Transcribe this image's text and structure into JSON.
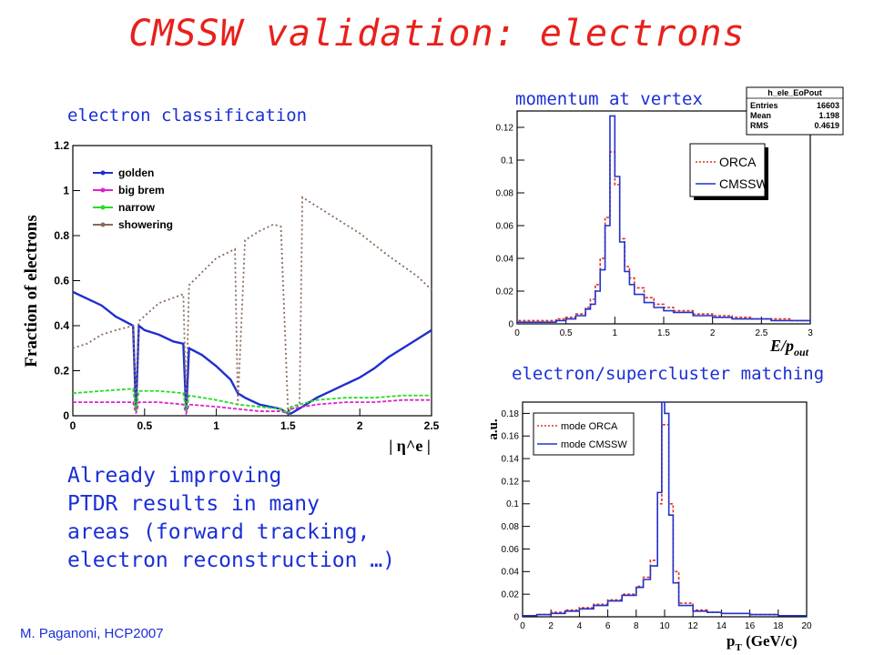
{
  "title": "CMSSW validation: electrons",
  "captions": {
    "classification": "electron classification",
    "momentum": "momentum at vertex",
    "matching": "electron/supercluster matching"
  },
  "bottom_text": [
    "Already improving",
    "PTDR results in many",
    "areas (forward tracking,",
    "electron reconstruction …)"
  ],
  "footer": "M. Paganoni, HCP2007",
  "colors": {
    "title": "#e8201c",
    "text": "#1a2fd6",
    "golden": "#1f2fd0",
    "bigbrem": "#e020d0",
    "narrow": "#22dd22",
    "showering": "#8a6a5a",
    "orca": "#e03020",
    "cmssw": "#2233cc"
  },
  "chart_data": [
    {
      "type": "line",
      "ylabel": "Fraction of electrons",
      "xlabel": "| η^e |",
      "xlim": [
        0,
        2.5
      ],
      "ylim": [
        0,
        1.2
      ],
      "xticks": [
        "0",
        "0.5",
        "1",
        "1.5",
        "2",
        "2.5"
      ],
      "yticks": [
        "0",
        "0.2",
        "0.4",
        "0.6",
        "0.8",
        "1",
        "1.2"
      ],
      "legend": [
        "golden",
        "big brem",
        "narrow",
        "showering"
      ],
      "series": [
        {
          "name": "golden",
          "x": [
            0,
            0.1,
            0.2,
            0.3,
            0.42,
            0.44,
            0.46,
            0.5,
            0.6,
            0.7,
            0.77,
            0.79,
            0.81,
            0.9,
            1.0,
            1.1,
            1.15,
            1.2,
            1.3,
            1.45,
            1.5,
            1.52,
            1.6,
            1.7,
            1.8,
            1.9,
            2.0,
            2.1,
            2.2,
            2.3,
            2.4,
            2.5
          ],
          "y": [
            0.55,
            0.52,
            0.49,
            0.44,
            0.4,
            0.02,
            0.4,
            0.38,
            0.36,
            0.33,
            0.32,
            0.02,
            0.3,
            0.27,
            0.22,
            0.16,
            0.1,
            0.08,
            0.05,
            0.03,
            0.01,
            0.01,
            0.04,
            0.08,
            0.11,
            0.14,
            0.17,
            0.21,
            0.26,
            0.3,
            0.34,
            0.38
          ]
        },
        {
          "name": "big brem",
          "x": [
            0,
            0.2,
            0.42,
            0.44,
            0.46,
            0.6,
            0.77,
            0.79,
            0.81,
            1.0,
            1.15,
            1.3,
            1.45,
            1.5,
            1.52,
            1.7,
            1.9,
            2.1,
            2.3,
            2.5
          ],
          "y": [
            0.06,
            0.06,
            0.06,
            0.01,
            0.06,
            0.06,
            0.05,
            0.01,
            0.05,
            0.04,
            0.03,
            0.02,
            0.02,
            0.01,
            0.03,
            0.05,
            0.06,
            0.06,
            0.07,
            0.07
          ]
        },
        {
          "name": "narrow",
          "x": [
            0,
            0.2,
            0.42,
            0.44,
            0.46,
            0.6,
            0.77,
            0.79,
            0.81,
            1.0,
            1.15,
            1.3,
            1.45,
            1.5,
            1.52,
            1.7,
            1.9,
            2.1,
            2.3,
            2.5
          ],
          "y": [
            0.1,
            0.11,
            0.12,
            0.02,
            0.11,
            0.11,
            0.1,
            0.02,
            0.09,
            0.07,
            0.05,
            0.04,
            0.03,
            0.01,
            0.04,
            0.07,
            0.08,
            0.08,
            0.09,
            0.09
          ]
        },
        {
          "name": "showering",
          "x": [
            0,
            0.1,
            0.2,
            0.3,
            0.42,
            0.44,
            0.46,
            0.6,
            0.77,
            0.79,
            0.81,
            1.0,
            1.13,
            1.15,
            1.2,
            1.3,
            1.4,
            1.45,
            1.5,
            1.58,
            1.6,
            1.8,
            2.0,
            2.2,
            2.4,
            2.5
          ],
          "y": [
            0.3,
            0.32,
            0.36,
            0.38,
            0.4,
            0.05,
            0.42,
            0.5,
            0.54,
            0.05,
            0.58,
            0.7,
            0.74,
            0.05,
            0.78,
            0.82,
            0.85,
            0.84,
            0.02,
            0.05,
            0.97,
            0.89,
            0.81,
            0.71,
            0.62,
            0.56
          ]
        }
      ]
    },
    {
      "type": "line",
      "stat_box": {
        "name": "h_ele_EoPout",
        "Entries": "16603",
        "Mean": "1.198",
        "RMS": "0.4619"
      },
      "xlabel": "E/p_out",
      "xlim": [
        0,
        3
      ],
      "ylim": [
        0,
        0.13
      ],
      "xticks": [
        "0",
        "0.5",
        "1",
        "1.5",
        "2",
        "2.5",
        "3"
      ],
      "yticks": [
        "0",
        "0.02",
        "0.04",
        "0.06",
        "0.08",
        "0.1",
        "0.12"
      ],
      "legend": [
        "ORCA",
        "CMSSW"
      ],
      "x": [
        0.0,
        0.1,
        0.2,
        0.3,
        0.4,
        0.5,
        0.6,
        0.7,
        0.75,
        0.8,
        0.85,
        0.9,
        0.95,
        1.0,
        1.05,
        1.1,
        1.15,
        1.2,
        1.3,
        1.4,
        1.5,
        1.6,
        1.8,
        2.0,
        2.2,
        2.4,
        2.6,
        2.8,
        3.0
      ],
      "series": [
        {
          "name": "ORCA",
          "values": [
            0.002,
            0.002,
            0.002,
            0.002,
            0.003,
            0.004,
            0.006,
            0.01,
            0.015,
            0.024,
            0.04,
            0.065,
            0.105,
            0.085,
            0.052,
            0.035,
            0.028,
            0.022,
            0.016,
            0.012,
            0.01,
            0.008,
            0.006,
            0.005,
            0.004,
            0.003,
            0.003,
            0.002,
            0.002
          ]
        },
        {
          "name": "CMSSW",
          "values": [
            0.001,
            0.001,
            0.001,
            0.001,
            0.002,
            0.003,
            0.005,
            0.009,
            0.012,
            0.02,
            0.033,
            0.06,
            0.127,
            0.09,
            0.05,
            0.032,
            0.024,
            0.018,
            0.013,
            0.01,
            0.008,
            0.007,
            0.005,
            0.004,
            0.003,
            0.003,
            0.002,
            0.002,
            0.001
          ]
        }
      ]
    },
    {
      "type": "line",
      "ylabel": "a.u.",
      "xlabel": "p_T (GeV/c)",
      "xlim": [
        0,
        20
      ],
      "ylim": [
        0,
        0.19
      ],
      "xticks": [
        "0",
        "2",
        "4",
        "6",
        "8",
        "10",
        "12",
        "14",
        "16",
        "18",
        "20"
      ],
      "yticks": [
        "0",
        "0.02",
        "0.04",
        "0.06",
        "0.08",
        "0.1",
        "0.12",
        "0.14",
        "0.16",
        "0.18"
      ],
      "legend": [
        "mode ORCA",
        "mode CMSSW"
      ],
      "x": [
        0,
        1,
        2,
        3,
        4,
        5,
        6,
        7,
        8,
        8.5,
        9,
        9.5,
        9.8,
        10.0,
        10.3,
        10.6,
        11,
        12,
        13,
        14,
        16,
        18,
        20
      ],
      "series": [
        {
          "name": "mode ORCA",
          "values": [
            0.001,
            0.002,
            0.004,
            0.006,
            0.008,
            0.011,
            0.015,
            0.02,
            0.027,
            0.035,
            0.05,
            0.1,
            0.17,
            0.17,
            0.1,
            0.04,
            0.012,
            0.006,
            0.004,
            0.003,
            0.002,
            0.001,
            0.001
          ]
        },
        {
          "name": "mode CMSSW",
          "values": [
            0.001,
            0.002,
            0.003,
            0.005,
            0.007,
            0.01,
            0.014,
            0.019,
            0.026,
            0.033,
            0.045,
            0.11,
            0.19,
            0.18,
            0.09,
            0.03,
            0.01,
            0.005,
            0.004,
            0.003,
            0.002,
            0.001,
            0.001
          ]
        }
      ]
    }
  ]
}
